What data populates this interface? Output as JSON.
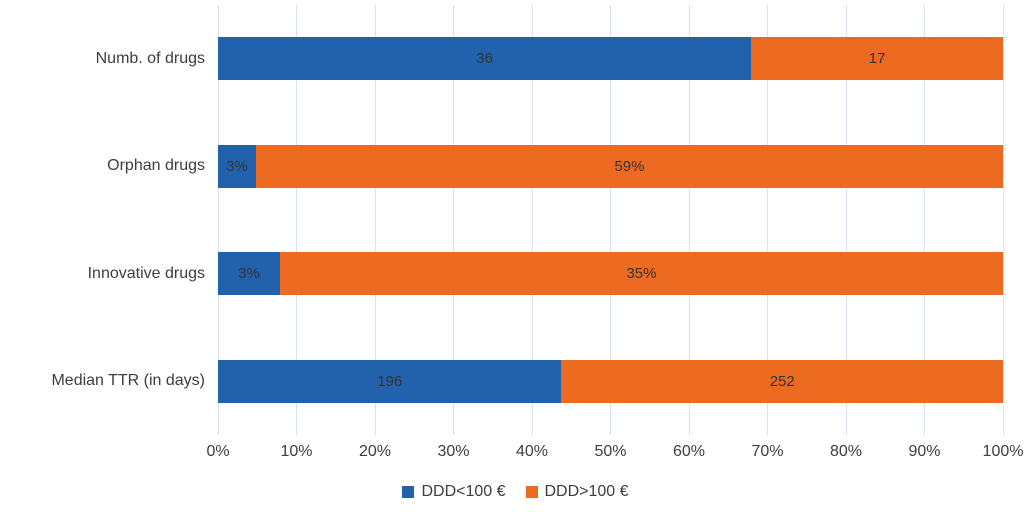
{
  "chart_data": {
    "type": "bar",
    "orientation": "horizontal",
    "stacking": "100%",
    "categories": [
      "Numb. of drugs",
      "Orphan drugs",
      "Innovative drugs",
      "Median TTR (in days)"
    ],
    "series": [
      {
        "name": "DDD<100 €",
        "color": "#2262ad",
        "values": [
          36,
          3,
          3,
          196
        ],
        "labels": [
          "36",
          "3%",
          "3%",
          "196"
        ]
      },
      {
        "name": "DDD>100 €",
        "color": "#ed6a21",
        "values": [
          17,
          59,
          35,
          252
        ],
        "labels": [
          "17",
          "59%",
          "35%",
          "252"
        ]
      }
    ],
    "x_ticks": [
      "0%",
      "10%",
      "20%",
      "30%",
      "40%",
      "50%",
      "60%",
      "70%",
      "80%",
      "90%",
      "100%"
    ],
    "xlim": [
      0,
      100
    ],
    "grid": true,
    "gridline_color": "#dbe3ee",
    "legend_position": "bottom",
    "label_color": "#333333",
    "axis_text_color": "#3d3d3d",
    "background": "#ffffff"
  }
}
